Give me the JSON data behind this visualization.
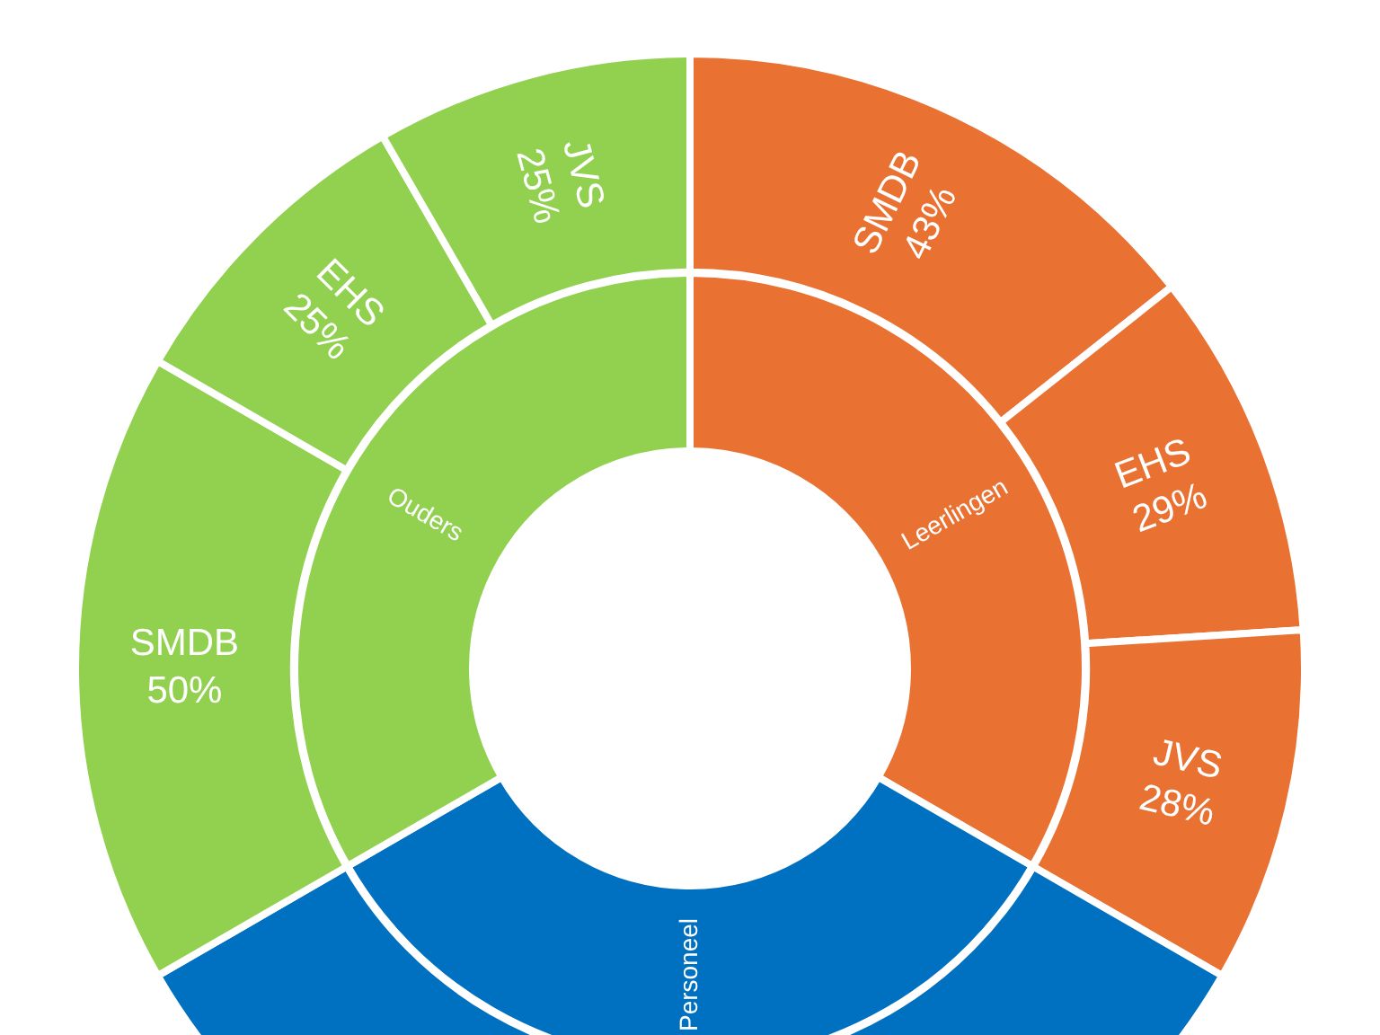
{
  "chart_data": [
    {
      "type": "donut",
      "categories": [
        "Leerlingen",
        "Personeel",
        "Ouders"
      ],
      "values": [
        33.3,
        33.3,
        33.3
      ],
      "colors": [
        "#e97132",
        "#0070c0",
        "#92d050"
      ],
      "legend": false
    },
    {
      "type": "donut",
      "categories": [
        "SMDB",
        "EHS",
        "JVS",
        null,
        "SMDB",
        "EHS",
        "JVS"
      ],
      "values": [
        43,
        29,
        28,
        100,
        50,
        25,
        25
      ],
      "colors": [
        "#e97132",
        "#e97132",
        "#e97132",
        "#0070c0",
        "#92d050",
        "#92d050",
        "#92d050"
      ],
      "value_labels": [
        "43%",
        "29%",
        "28%",
        null,
        "50%",
        "25%",
        "25%"
      ],
      "legend": false
    }
  ]
}
